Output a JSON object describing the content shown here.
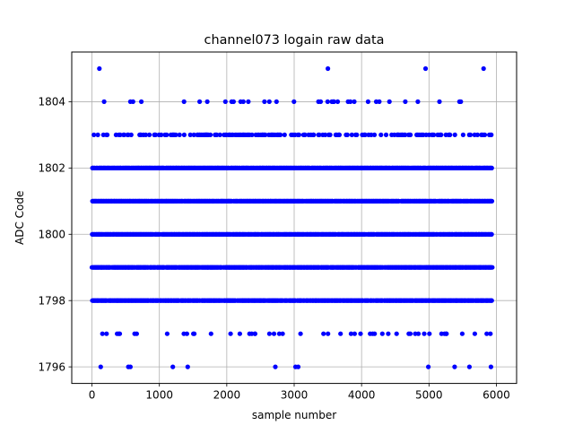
{
  "chart_data": {
    "type": "scatter",
    "title": "channel073 logain raw data",
    "xlabel": "sample number",
    "ylabel": "ADC Code",
    "xlim": [
      -300,
      6300
    ],
    "ylim": [
      1795.5,
      1805.5
    ],
    "xticks": [
      0,
      1000,
      2000,
      3000,
      4000,
      5000,
      6000
    ],
    "yticks": [
      1796,
      1798,
      1800,
      1802,
      1804
    ],
    "grid": true,
    "n_samples": 5940,
    "series": [
      {
        "marker_color": "#0000ff",
        "levels": [
          {
            "value": 1805,
            "samples": [
              110,
              3500,
              4950,
              5810
            ]
          },
          {
            "value": 1804,
            "density": "sparse"
          },
          {
            "value": 1803,
            "density": "medium"
          },
          {
            "value": 1802,
            "density": "dense"
          },
          {
            "value": 1801,
            "density": "dense"
          },
          {
            "value": 1800,
            "density": "dense"
          },
          {
            "value": 1799,
            "density": "dense"
          },
          {
            "value": 1798,
            "density": "dense"
          },
          {
            "value": 1797,
            "density": "sparse"
          },
          {
            "value": 1796,
            "samples": [
              130,
              540,
              570,
              1200,
              1420,
              2720,
              3020,
              3060,
              4990,
              5380,
              5600,
              5920
            ]
          }
        ]
      }
    ]
  }
}
